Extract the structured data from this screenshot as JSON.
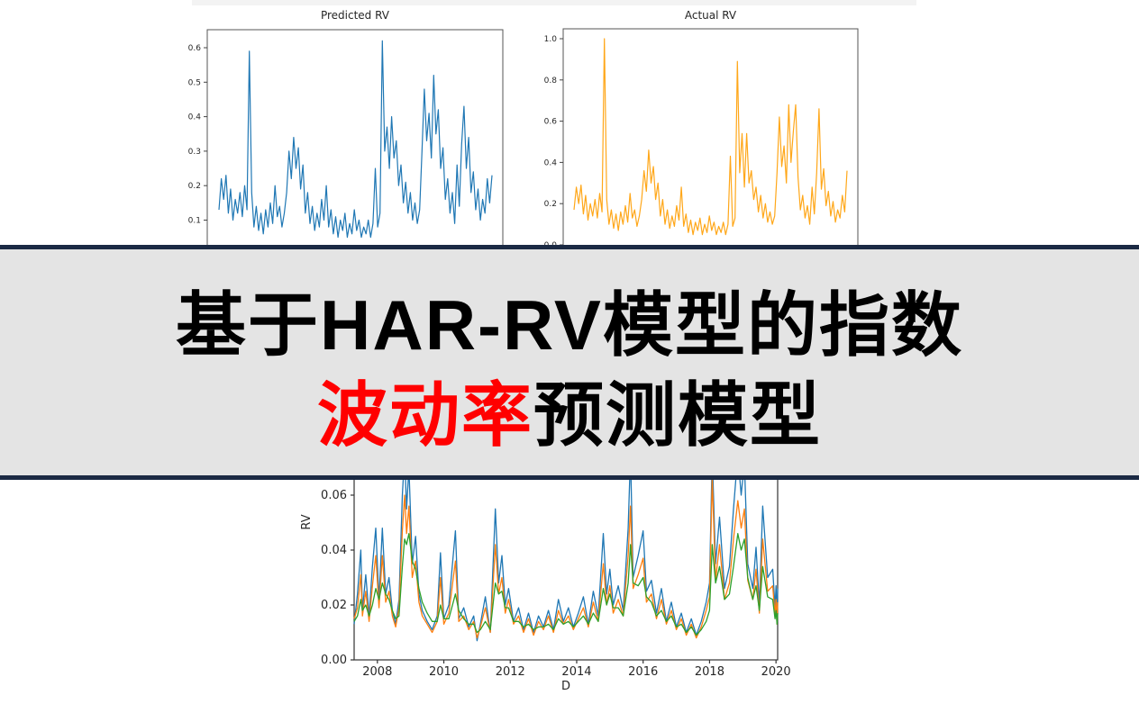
{
  "banner": {
    "line1": "基于HAR-RV模型的指数",
    "line2_highlight": "波动率",
    "line2_rest": "预测模型",
    "text_color": "#000000",
    "highlight_color": "#ff0000",
    "background_color": "#e4e4e4",
    "border_color": "#1b2a44"
  },
  "decor": {
    "top_strip_color": "#f3f3f3",
    "page_background": "#ffffff",
    "axis_color_top_charts": "#555555",
    "axis_color_bottom_chart": "#333333",
    "tick_text_color": "#262626"
  },
  "chart_data": [
    {
      "type": "line",
      "title": "Predicted RV",
      "series_color": "#1f77b4",
      "xlim": [
        0,
        1
      ],
      "ylim": [
        0.0,
        0.65
      ],
      "grid": false,
      "legend": "none",
      "yticks": [
        0.6,
        0.5,
        0.4,
        0.3,
        0.2,
        0.1
      ],
      "ytick_labels": [
        "0.6",
        "0.5",
        "0.4",
        "0.3",
        "0.2",
        "0.1"
      ],
      "y": [
        0.13,
        0.22,
        0.16,
        0.23,
        0.12,
        0.19,
        0.1,
        0.16,
        0.12,
        0.18,
        0.11,
        0.2,
        0.13,
        0.59,
        0.18,
        0.08,
        0.14,
        0.07,
        0.12,
        0.06,
        0.13,
        0.08,
        0.15,
        0.09,
        0.2,
        0.11,
        0.14,
        0.08,
        0.12,
        0.18,
        0.3,
        0.22,
        0.34,
        0.25,
        0.31,
        0.19,
        0.26,
        0.12,
        0.18,
        0.09,
        0.14,
        0.07,
        0.12,
        0.08,
        0.16,
        0.1,
        0.2,
        0.08,
        0.13,
        0.06,
        0.11,
        0.05,
        0.1,
        0.07,
        0.12,
        0.05,
        0.09,
        0.06,
        0.13,
        0.07,
        0.1,
        0.05,
        0.08,
        0.06,
        0.1,
        0.05,
        0.09,
        0.25,
        0.08,
        0.12,
        0.62,
        0.3,
        0.37,
        0.25,
        0.4,
        0.28,
        0.33,
        0.2,
        0.26,
        0.15,
        0.21,
        0.12,
        0.18,
        0.1,
        0.15,
        0.09,
        0.13,
        0.3,
        0.48,
        0.33,
        0.41,
        0.28,
        0.52,
        0.35,
        0.42,
        0.25,
        0.31,
        0.16,
        0.22,
        0.12,
        0.18,
        0.09,
        0.26,
        0.14,
        0.32,
        0.43,
        0.25,
        0.34,
        0.18,
        0.24,
        0.13,
        0.19,
        0.1,
        0.16,
        0.12,
        0.22,
        0.15,
        0.23
      ]
    },
    {
      "type": "line",
      "title": "Actual RV",
      "series_color": "#ffa719",
      "xlim": [
        0,
        1
      ],
      "ylim": [
        0.0,
        1.05
      ],
      "grid": false,
      "legend": "none",
      "yticks": [
        1.0,
        0.8,
        0.6,
        0.4,
        0.2,
        0.0
      ],
      "ytick_labels": [
        "1.0",
        "0.8",
        "0.6",
        "0.4",
        "0.2",
        "0.0"
      ],
      "y": [
        0.17,
        0.28,
        0.2,
        0.29,
        0.15,
        0.24,
        0.12,
        0.2,
        0.14,
        0.22,
        0.13,
        0.25,
        0.16,
        1.0,
        0.22,
        0.1,
        0.17,
        0.08,
        0.15,
        0.07,
        0.16,
        0.1,
        0.19,
        0.11,
        0.25,
        0.13,
        0.17,
        0.09,
        0.14,
        0.22,
        0.36,
        0.26,
        0.46,
        0.3,
        0.38,
        0.22,
        0.3,
        0.14,
        0.22,
        0.1,
        0.17,
        0.08,
        0.14,
        0.09,
        0.19,
        0.12,
        0.28,
        0.09,
        0.15,
        0.06,
        0.12,
        0.05,
        0.11,
        0.07,
        0.13,
        0.05,
        0.1,
        0.06,
        0.14,
        0.07,
        0.11,
        0.05,
        0.09,
        0.06,
        0.11,
        0.05,
        0.1,
        0.43,
        0.09,
        0.13,
        0.89,
        0.35,
        0.54,
        0.28,
        0.54,
        0.3,
        0.36,
        0.22,
        0.28,
        0.16,
        0.24,
        0.13,
        0.2,
        0.11,
        0.16,
        0.1,
        0.14,
        0.35,
        0.62,
        0.38,
        0.48,
        0.3,
        0.68,
        0.4,
        0.55,
        0.68,
        0.33,
        0.17,
        0.24,
        0.13,
        0.19,
        0.1,
        0.28,
        0.15,
        0.35,
        0.66,
        0.27,
        0.37,
        0.19,
        0.26,
        0.14,
        0.21,
        0.11,
        0.17,
        0.13,
        0.24,
        0.16,
        0.36
      ]
    },
    {
      "type": "line",
      "title": "",
      "xlabel": "D",
      "ylabel": "RV",
      "xlim": [
        2007.3,
        2020.05
      ],
      "ylim": [
        0.0,
        0.0715
      ],
      "grid": false,
      "legend": "none",
      "yticks": [
        0.06,
        0.04,
        0.02,
        0.0
      ],
      "ytick_labels": [
        "0.06",
        "0.04",
        "0.02",
        "0.00"
      ],
      "xticks": [
        2008,
        2010,
        2012,
        2014,
        2016,
        2018,
        2020
      ],
      "xtick_labels": [
        "2008",
        "2010",
        "2012",
        "2014",
        "2016",
        "2018",
        "2020"
      ],
      "x": [
        2007.3,
        2007.4,
        2007.5,
        2007.55,
        2007.65,
        2007.75,
        2007.85,
        2007.95,
        2008.05,
        2008.15,
        2008.25,
        2008.35,
        2008.45,
        2008.55,
        2008.65,
        2008.75,
        2008.82,
        2008.88,
        2008.95,
        2009.05,
        2009.15,
        2009.25,
        2009.35,
        2009.5,
        2009.65,
        2009.8,
        2009.9,
        2010.0,
        2010.15,
        2010.35,
        2010.45,
        2010.6,
        2010.75,
        2010.9,
        2011.0,
        2011.1,
        2011.25,
        2011.4,
        2011.55,
        2011.65,
        2011.75,
        2011.85,
        2011.95,
        2012.1,
        2012.25,
        2012.4,
        2012.55,
        2012.7,
        2012.85,
        2013.0,
        2013.15,
        2013.3,
        2013.45,
        2013.6,
        2013.75,
        2013.9,
        2014.05,
        2014.2,
        2014.35,
        2014.5,
        2014.65,
        2014.8,
        2014.9,
        2015.0,
        2015.1,
        2015.25,
        2015.4,
        2015.55,
        2015.62,
        2015.7,
        2015.85,
        2016.0,
        2016.1,
        2016.25,
        2016.4,
        2016.55,
        2016.7,
        2016.85,
        2017.0,
        2017.15,
        2017.3,
        2017.45,
        2017.6,
        2017.75,
        2017.9,
        2018.0,
        2018.08,
        2018.18,
        2018.3,
        2018.45,
        2018.6,
        2018.72,
        2018.85,
        2018.95,
        2019.05,
        2019.15,
        2019.3,
        2019.4,
        2019.5,
        2019.6,
        2019.75,
        2019.9,
        2019.97,
        2020.0,
        2020.03,
        2020.05
      ],
      "series": [
        {
          "color": "#1f77b4",
          "y": [
            0.013,
            0.024,
            0.04,
            0.018,
            0.031,
            0.016,
            0.034,
            0.048,
            0.022,
            0.048,
            0.024,
            0.03,
            0.018,
            0.013,
            0.022,
            0.06,
            0.075,
            0.055,
            0.07,
            0.035,
            0.045,
            0.024,
            0.018,
            0.014,
            0.011,
            0.016,
            0.039,
            0.015,
            0.02,
            0.047,
            0.015,
            0.019,
            0.012,
            0.016,
            0.007,
            0.013,
            0.023,
            0.01,
            0.055,
            0.028,
            0.038,
            0.02,
            0.026,
            0.014,
            0.019,
            0.011,
            0.017,
            0.01,
            0.016,
            0.012,
            0.018,
            0.011,
            0.022,
            0.014,
            0.019,
            0.012,
            0.017,
            0.023,
            0.013,
            0.025,
            0.016,
            0.046,
            0.024,
            0.033,
            0.02,
            0.027,
            0.018,
            0.048,
            0.075,
            0.03,
            0.038,
            0.047,
            0.025,
            0.029,
            0.017,
            0.026,
            0.014,
            0.021,
            0.012,
            0.017,
            0.01,
            0.015,
            0.009,
            0.014,
            0.021,
            0.028,
            0.075,
            0.035,
            0.052,
            0.026,
            0.034,
            0.055,
            0.075,
            0.06,
            0.072,
            0.035,
            0.026,
            0.041,
            0.02,
            0.056,
            0.03,
            0.033,
            0.019,
            0.027,
            0.015,
            0.026
          ]
        },
        {
          "color": "#ff7f0e",
          "y": [
            0.015,
            0.019,
            0.031,
            0.016,
            0.025,
            0.014,
            0.027,
            0.038,
            0.019,
            0.038,
            0.021,
            0.025,
            0.016,
            0.012,
            0.019,
            0.047,
            0.06,
            0.046,
            0.056,
            0.03,
            0.036,
            0.021,
            0.016,
            0.013,
            0.01,
            0.014,
            0.03,
            0.013,
            0.017,
            0.036,
            0.014,
            0.016,
            0.011,
            0.014,
            0.008,
            0.012,
            0.019,
            0.01,
            0.042,
            0.024,
            0.03,
            0.017,
            0.022,
            0.013,
            0.016,
            0.01,
            0.015,
            0.009,
            0.014,
            0.011,
            0.016,
            0.01,
            0.018,
            0.013,
            0.016,
            0.011,
            0.015,
            0.019,
            0.012,
            0.021,
            0.014,
            0.035,
            0.02,
            0.027,
            0.017,
            0.022,
            0.016,
            0.038,
            0.056,
            0.026,
            0.031,
            0.037,
            0.021,
            0.024,
            0.015,
            0.022,
            0.013,
            0.018,
            0.011,
            0.015,
            0.009,
            0.013,
            0.008,
            0.012,
            0.018,
            0.023,
            0.066,
            0.029,
            0.042,
            0.022,
            0.028,
            0.044,
            0.058,
            0.048,
            0.055,
            0.029,
            0.022,
            0.033,
            0.017,
            0.044,
            0.025,
            0.027,
            0.016,
            0.022,
            0.013,
            0.021
          ]
        },
        {
          "color": "#2ca02c",
          "y": [
            0.014,
            0.016,
            0.022,
            0.018,
            0.02,
            0.016,
            0.02,
            0.026,
            0.022,
            0.028,
            0.024,
            0.022,
            0.018,
            0.015,
            0.016,
            0.034,
            0.044,
            0.042,
            0.046,
            0.036,
            0.033,
            0.026,
            0.021,
            0.017,
            0.014,
            0.014,
            0.02,
            0.015,
            0.015,
            0.024,
            0.018,
            0.015,
            0.013,
            0.013,
            0.01,
            0.011,
            0.014,
            0.011,
            0.028,
            0.024,
            0.025,
            0.019,
            0.019,
            0.014,
            0.014,
            0.012,
            0.013,
            0.011,
            0.012,
            0.012,
            0.013,
            0.011,
            0.015,
            0.013,
            0.014,
            0.012,
            0.014,
            0.016,
            0.013,
            0.017,
            0.014,
            0.026,
            0.02,
            0.024,
            0.019,
            0.019,
            0.016,
            0.028,
            0.042,
            0.028,
            0.027,
            0.03,
            0.023,
            0.021,
            0.016,
            0.018,
            0.014,
            0.016,
            0.012,
            0.013,
            0.01,
            0.012,
            0.009,
            0.011,
            0.014,
            0.018,
            0.042,
            0.028,
            0.034,
            0.022,
            0.024,
            0.034,
            0.046,
            0.04,
            0.044,
            0.03,
            0.022,
            0.027,
            0.018,
            0.034,
            0.023,
            0.022,
            0.015,
            0.018,
            0.013,
            0.017
          ]
        }
      ]
    }
  ]
}
